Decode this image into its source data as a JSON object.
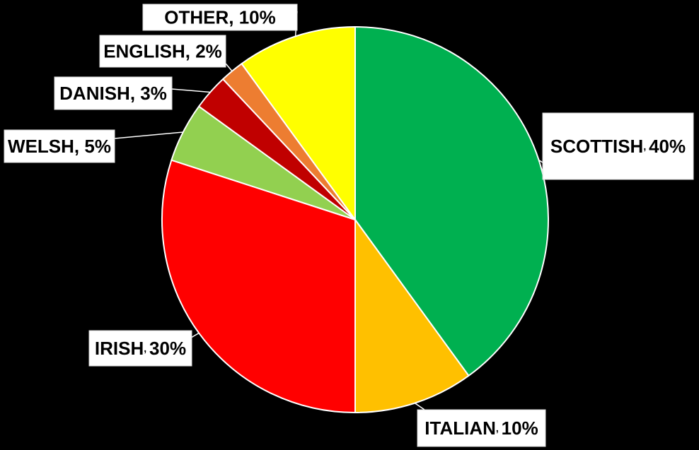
{
  "chart_data": {
    "type": "pie",
    "title": "",
    "start_angle_deg": 0,
    "direction": "clockwise",
    "slices": [
      {
        "label": "SCOTTISH",
        "value": 40,
        "value_label": "40%",
        "color": "#00B050",
        "separator": ", ",
        "separator_style": "small"
      },
      {
        "label": "ITALIAN",
        "value": 10,
        "value_label": "10%",
        "color": "#FFC000",
        "separator": ", ",
        "separator_style": "small"
      },
      {
        "label": "IRISH",
        "value": 30,
        "value_label": "30%",
        "color": "#FF0000",
        "separator": ", ",
        "separator_style": "small"
      },
      {
        "label": "WELSH",
        "value": 5,
        "value_label": "5%",
        "color": "#92D050",
        "separator": ", ",
        "separator_style": "normal"
      },
      {
        "label": "DANISH",
        "value": 3,
        "value_label": "3%",
        "color": "#C00000",
        "separator": ", ",
        "separator_style": "normal"
      },
      {
        "label": "ENGLISH",
        "value": 2,
        "value_label": "2%",
        "color": "#ED7D31",
        "separator": ", ",
        "separator_style": "normal"
      },
      {
        "label": "OTHER",
        "value": 10,
        "value_label": "10%",
        "color": "#FFFF00",
        "separator": ", ",
        "separator_style": "normal"
      }
    ],
    "legend": "none",
    "data_labels": "outside with leader lines"
  },
  "colors": {
    "background": "#000000",
    "slice_border": "#FFFFFF",
    "label_background": "#FFFFFF",
    "label_text": "#000000"
  }
}
